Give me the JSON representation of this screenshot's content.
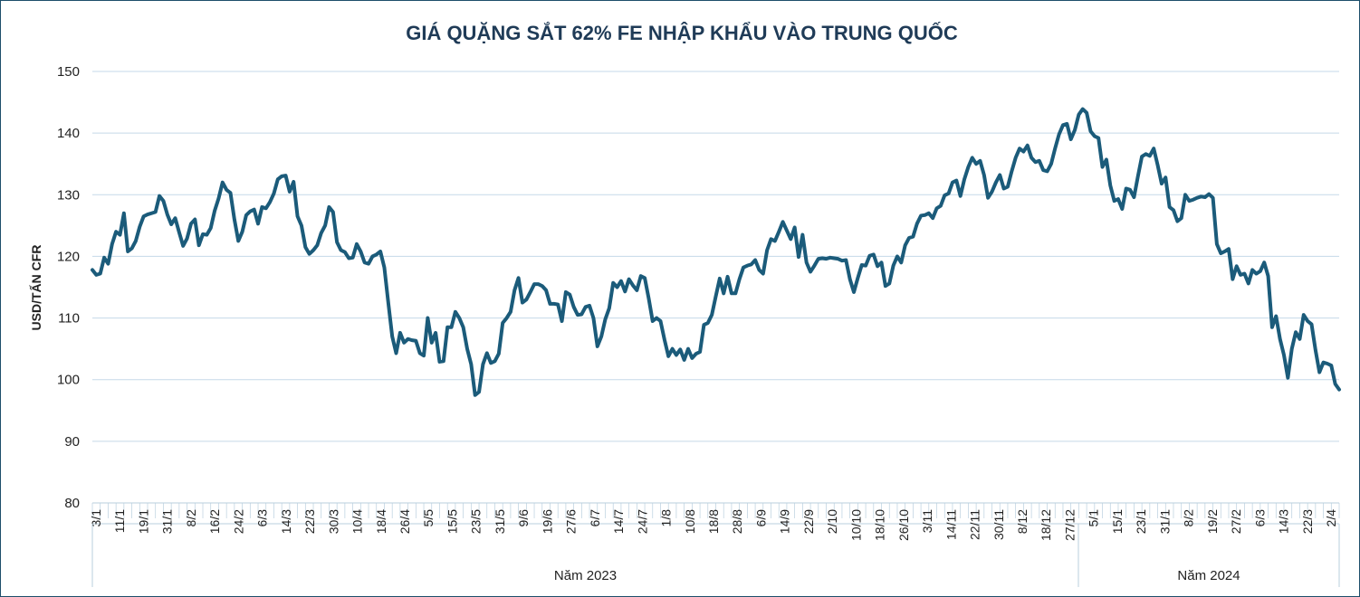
{
  "chart_data": {
    "type": "line",
    "title": "GIÁ QUẶNG SẮT 62% FE NHẬP KHẨU VÀO TRUNG QUỐC",
    "xlabel": "",
    "ylabel": "USD/TẤN CFR",
    "ylim": [
      80,
      150
    ],
    "yticks": [
      80,
      90,
      100,
      110,
      120,
      130,
      140,
      150
    ],
    "grid": true,
    "line_color": "#1b5b7a",
    "year_groups": [
      {
        "label": "Năm 2023",
        "start_tick": 0,
        "end_tick": 40
      },
      {
        "label": "Năm 2024",
        "start_tick": 41,
        "end_tick": 54
      }
    ],
    "x_tick_labels": [
      "3/1",
      "11/1",
      "19/1",
      "31/1",
      "8/2",
      "16/2",
      "24/2",
      "6/3",
      "14/3",
      "22/3",
      "30/3",
      "10/4",
      "18/4",
      "26/4",
      "5/5",
      "15/5",
      "23/5",
      "31/5",
      "9/6",
      "19/6",
      "27/6",
      "6/7",
      "14/7",
      "24/7",
      "1/8",
      "10/8",
      "18/8",
      "28/8",
      "6/9",
      "14/9",
      "22/9",
      "2/10",
      "10/10",
      "18/10",
      "26/10",
      "3/11",
      "14/11",
      "22/11",
      "30/11",
      "8/12",
      "18/12",
      "27/12",
      "5/1",
      "15/1",
      "23/1",
      "31/1",
      "8/2",
      "19/2",
      "27/2",
      "6/3",
      "14/3",
      "22/3",
      "2/4"
    ],
    "series": [
      {
        "name": "Giá quặng sắt 62% Fe",
        "values": [
          117.8,
          117.0,
          117.2,
          119.8,
          118.8,
          122.0,
          124.0,
          123.5,
          127.0,
          120.8,
          121.3,
          122.5,
          124.8,
          126.5,
          126.8,
          127.0,
          127.2,
          129.8,
          129.0,
          126.8,
          125.2,
          126.2,
          123.9,
          121.7,
          122.9,
          125.3,
          126.0,
          121.8,
          123.6,
          123.5,
          124.6,
          127.4,
          129.4,
          132.0,
          130.8,
          130.3,
          126.0,
          122.5,
          124.0,
          126.7,
          127.3,
          127.6,
          125.3,
          128.0,
          127.8,
          128.8,
          130.2,
          132.5,
          133.0,
          133.1,
          130.5,
          132.1,
          126.5,
          125.0,
          121.5,
          120.4,
          121.0,
          121.8,
          123.8,
          125.0,
          128.0,
          127.2,
          122.3,
          121.0,
          120.7,
          119.7,
          119.8,
          122.0,
          120.8,
          119.0,
          118.8,
          120.0,
          120.3,
          120.8,
          118.2,
          112.5,
          107.0,
          104.3,
          107.6,
          106.0,
          106.6,
          106.4,
          106.3,
          104.3,
          103.9,
          110.0,
          106.0,
          107.6,
          102.9,
          103.0,
          108.5,
          108.5,
          111.0,
          110.0,
          108.5,
          105.0,
          102.5,
          97.5,
          98.0,
          102.5,
          104.3,
          102.7,
          103.0,
          104.2,
          109.2,
          110.0,
          111.0,
          114.5,
          116.5,
          112.5,
          113.0,
          114.2,
          115.5,
          115.5,
          115.2,
          114.5,
          112.3,
          112.3,
          112.2,
          109.5,
          114.2,
          113.8,
          111.8,
          110.5,
          110.6,
          111.8,
          112.0,
          110.0,
          105.4,
          107.0,
          109.8,
          111.6,
          115.7,
          115.0,
          116.0,
          114.3,
          116.3,
          115.3,
          114.5,
          116.8,
          116.5,
          113.2,
          109.5,
          110.0,
          109.5,
          106.5,
          103.8,
          105.0,
          104.0,
          104.9,
          103.2,
          105.0,
          103.5,
          104.2,
          104.5,
          108.9,
          109.2,
          110.5,
          113.5,
          116.4,
          114.0,
          116.7,
          114.0,
          114.0,
          116.3,
          118.2,
          118.5,
          118.7,
          119.4,
          117.8,
          117.2,
          121.0,
          122.8,
          122.5,
          124.0,
          125.6,
          124.2,
          122.8,
          124.7,
          119.9,
          123.5,
          119.0,
          117.5,
          118.5,
          119.6,
          119.7,
          119.6,
          119.8,
          119.7,
          119.6,
          119.3,
          119.4,
          116.3,
          114.2,
          116.5,
          118.6,
          118.5,
          120.1,
          120.3,
          118.4,
          119.0,
          115.2,
          115.6,
          118.5,
          120.0,
          119.0,
          121.8,
          123.0,
          123.2,
          125.3,
          126.6,
          126.7,
          127.0,
          126.2,
          127.8,
          128.2,
          129.9,
          130.2,
          132.0,
          132.3,
          129.8,
          132.5,
          134.5,
          136.0,
          135.0,
          135.5,
          133.2,
          129.5,
          130.5,
          132.0,
          133.2,
          131.0,
          131.3,
          133.8,
          136.0,
          137.5,
          137.0,
          138.0,
          136.0,
          135.3,
          135.5,
          134.0,
          133.8,
          135.0,
          137.5,
          139.8,
          141.3,
          141.5,
          139.0,
          140.5,
          143.0,
          143.9,
          143.3,
          140.3,
          139.5,
          139.2,
          134.5,
          135.7,
          131.5,
          129.0,
          129.3,
          127.7,
          131.0,
          130.8,
          129.6,
          133.0,
          136.2,
          136.6,
          136.3,
          137.5,
          134.8,
          131.8,
          132.8,
          128.0,
          127.5,
          125.7,
          126.2,
          130.0,
          129.0,
          129.2,
          129.5,
          129.7,
          129.6,
          130.1,
          129.5,
          122.0,
          120.5,
          120.8,
          121.2,
          116.3,
          118.4,
          117.0,
          117.2,
          115.6,
          117.8,
          117.2,
          117.6,
          119.0,
          116.8,
          108.5,
          110.3,
          106.6,
          104.0,
          100.3,
          105.0,
          107.7,
          106.6,
          110.5,
          109.5,
          109.0,
          104.8,
          101.2,
          102.8,
          102.6,
          102.3,
          99.3,
          98.4
        ]
      }
    ]
  }
}
